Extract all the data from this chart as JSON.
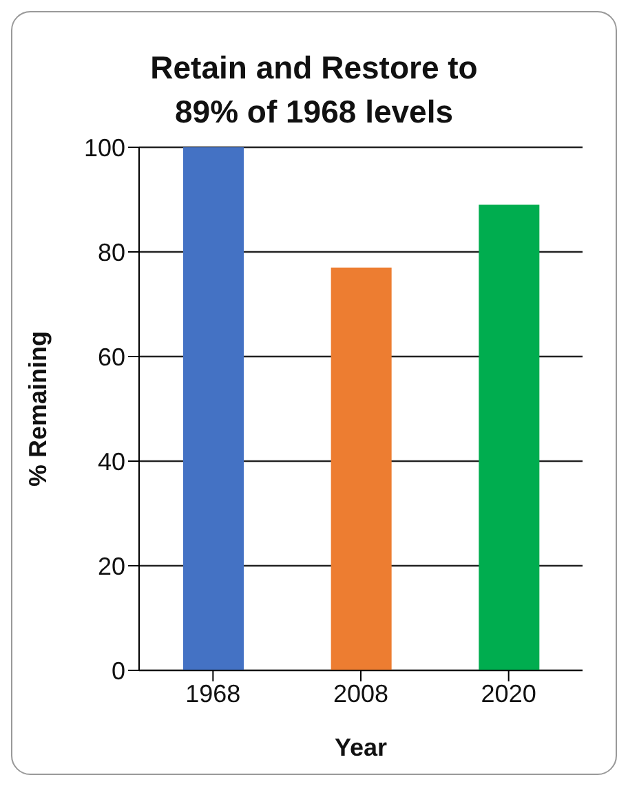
{
  "chart_data": {
    "type": "bar",
    "title": "Retain and Restore to\n89% of 1968 levels",
    "xlabel": "Year",
    "ylabel": "% Remaining",
    "categories": [
      "1968",
      "2008",
      "2020"
    ],
    "values": [
      100,
      77,
      89
    ],
    "colors": [
      "#4472c4",
      "#ed7d31",
      "#00ad4f"
    ],
    "ylim": [
      0,
      100
    ],
    "yticks": [
      0,
      20,
      40,
      60,
      80,
      100
    ],
    "grid": "y"
  }
}
